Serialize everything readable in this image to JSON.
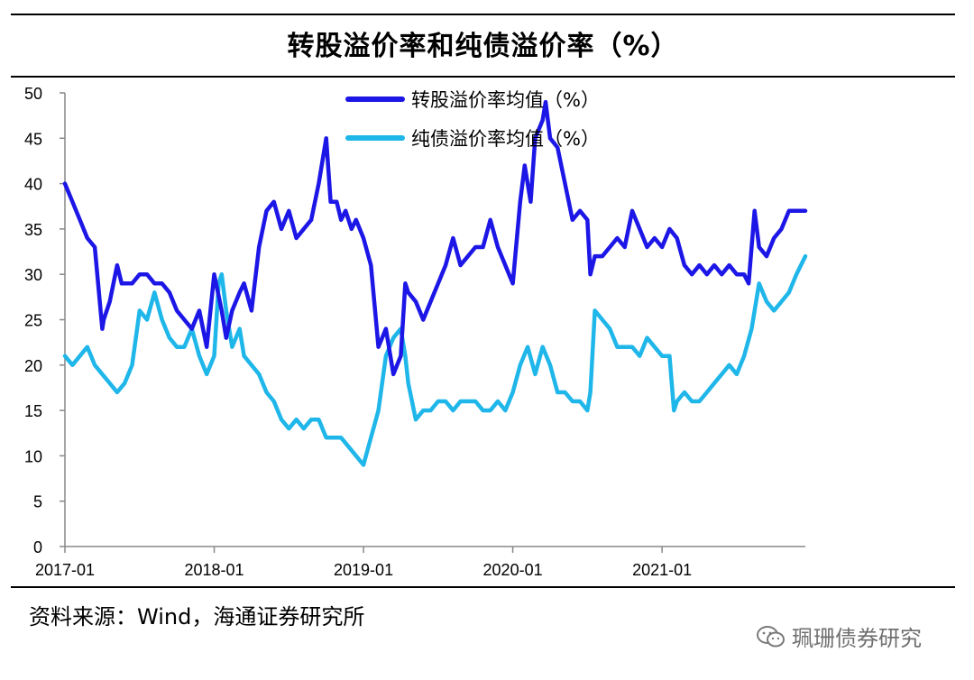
{
  "title": "转股溢价率和纯债溢价率（%）",
  "source": "资料来源：Wind，海通证券研究所",
  "watermark": {
    "icon": "wechat-icon",
    "text": "珮珊债券研究"
  },
  "colors": {
    "series1": "#1c16e6",
    "series2": "#1fb6ea",
    "axis": "#888888"
  },
  "chart_data": {
    "type": "line",
    "title": "转股溢价率和纯债溢价率（%）",
    "xlabel": "",
    "ylabel": "",
    "ylim": [
      0,
      50
    ],
    "yticks": [
      0,
      5,
      10,
      15,
      20,
      25,
      30,
      35,
      40,
      45,
      50
    ],
    "xlim": [
      2017.0,
      2021.96
    ],
    "xticks": [
      {
        "label": "2017-01",
        "value": 2017.0
      },
      {
        "label": "2018-01",
        "value": 2018.0
      },
      {
        "label": "2019-01",
        "value": 2019.0
      },
      {
        "label": "2020-01",
        "value": 2020.0
      },
      {
        "label": "2021-01",
        "value": 2021.0
      }
    ],
    "legend_position": "top-center",
    "grid": false,
    "series": [
      {
        "name": "转股溢价率均值（%）",
        "color": "#1c16e6",
        "x": [
          2017.0,
          2017.05,
          2017.1,
          2017.15,
          2017.2,
          2017.25,
          2017.26,
          2017.3,
          2017.35,
          2017.38,
          2017.45,
          2017.5,
          2017.55,
          2017.6,
          2017.65,
          2017.7,
          2017.75,
          2017.8,
          2017.85,
          2017.9,
          2017.95,
          2018.0,
          2018.05,
          2018.08,
          2018.12,
          2018.17,
          2018.2,
          2018.25,
          2018.3,
          2018.35,
          2018.4,
          2018.45,
          2018.5,
          2018.55,
          2018.6,
          2018.65,
          2018.7,
          2018.75,
          2018.78,
          2018.82,
          2018.85,
          2018.88,
          2018.92,
          2018.95,
          2019.0,
          2019.05,
          2019.1,
          2019.15,
          2019.2,
          2019.25,
          2019.28,
          2019.3,
          2019.35,
          2019.4,
          2019.45,
          2019.5,
          2019.55,
          2019.6,
          2019.65,
          2019.7,
          2019.75,
          2019.8,
          2019.85,
          2019.9,
          2019.95,
          2020.0,
          2020.05,
          2020.08,
          2020.12,
          2020.15,
          2020.2,
          2020.22,
          2020.25,
          2020.3,
          2020.35,
          2020.4,
          2020.45,
          2020.5,
          2020.52,
          2020.55,
          2020.6,
          2020.65,
          2020.7,
          2020.75,
          2020.8,
          2020.85,
          2020.9,
          2020.95,
          2021.0,
          2021.05,
          2021.1,
          2021.15,
          2021.2,
          2021.25,
          2021.3,
          2021.35,
          2021.4,
          2021.45,
          2021.5,
          2021.55,
          2021.58,
          2021.62,
          2021.65,
          2021.7,
          2021.75,
          2021.8,
          2021.85,
          2021.9,
          2021.96
        ],
        "values": [
          40,
          38,
          36,
          34,
          33,
          24,
          25,
          27,
          31,
          29,
          29,
          30,
          30,
          29,
          29,
          28,
          26,
          25,
          24,
          26,
          22,
          30,
          26,
          23,
          26,
          28,
          29,
          26,
          33,
          37,
          38,
          35,
          37,
          34,
          35,
          36,
          40,
          45,
          38,
          38,
          36,
          37,
          35,
          36,
          34,
          31,
          22,
          24,
          19,
          21,
          29,
          28,
          27,
          25,
          27,
          29,
          31,
          34,
          31,
          32,
          33,
          33,
          36,
          33,
          31,
          29,
          38,
          42,
          38,
          45,
          47,
          49,
          45,
          44,
          40,
          36,
          37,
          36,
          30,
          32,
          32,
          33,
          34,
          33,
          37,
          35,
          33,
          34,
          33,
          35,
          34,
          31,
          30,
          31,
          30,
          31,
          30,
          31,
          30,
          30,
          29,
          37,
          33,
          32,
          34,
          35,
          37,
          37,
          37
        ]
      },
      {
        "name": "纯债溢价率均值（%）",
        "color": "#1fb6ea",
        "x": [
          2017.0,
          2017.05,
          2017.1,
          2017.15,
          2017.2,
          2017.25,
          2017.3,
          2017.35,
          2017.4,
          2017.45,
          2017.5,
          2017.55,
          2017.6,
          2017.65,
          2017.7,
          2017.75,
          2017.8,
          2017.85,
          2017.9,
          2017.95,
          2018.0,
          2018.03,
          2018.05,
          2018.08,
          2018.12,
          2018.17,
          2018.2,
          2018.25,
          2018.3,
          2018.35,
          2018.4,
          2018.45,
          2018.5,
          2018.55,
          2018.6,
          2018.65,
          2018.7,
          2018.75,
          2018.8,
          2018.85,
          2018.9,
          2018.95,
          2019.0,
          2019.05,
          2019.1,
          2019.15,
          2019.2,
          2019.25,
          2019.28,
          2019.3,
          2019.35,
          2019.4,
          2019.45,
          2019.5,
          2019.55,
          2019.6,
          2019.65,
          2019.7,
          2019.75,
          2019.8,
          2019.85,
          2019.9,
          2019.95,
          2020.0,
          2020.05,
          2020.1,
          2020.15,
          2020.2,
          2020.25,
          2020.3,
          2020.35,
          2020.4,
          2020.45,
          2020.5,
          2020.52,
          2020.55,
          2020.6,
          2020.65,
          2020.7,
          2020.75,
          2020.8,
          2020.85,
          2020.9,
          2020.95,
          2021.0,
          2021.05,
          2021.08,
          2021.1,
          2021.15,
          2021.2,
          2021.25,
          2021.3,
          2021.35,
          2021.4,
          2021.45,
          2021.5,
          2021.55,
          2021.6,
          2021.65,
          2021.7,
          2021.75,
          2021.8,
          2021.85,
          2021.9,
          2021.96
        ],
        "values": [
          21,
          20,
          21,
          22,
          20,
          19,
          18,
          17,
          18,
          20,
          26,
          25,
          28,
          25,
          23,
          22,
          22,
          24,
          21,
          19,
          21,
          29,
          30,
          26,
          22,
          24,
          21,
          20,
          19,
          17,
          16,
          14,
          13,
          14,
          13,
          14,
          14,
          12,
          12,
          12,
          11,
          10,
          9,
          12,
          15,
          21,
          23,
          24,
          21,
          18,
          14,
          15,
          15,
          16,
          16,
          15,
          16,
          16,
          16,
          15,
          15,
          16,
          15,
          17,
          20,
          22,
          19,
          22,
          20,
          17,
          17,
          16,
          16,
          15,
          17,
          26,
          25,
          24,
          22,
          22,
          22,
          21,
          23,
          22,
          21,
          21,
          15,
          16,
          17,
          16,
          16,
          17,
          18,
          19,
          20,
          19,
          21,
          24,
          29,
          27,
          26,
          27,
          28,
          30,
          32
        ]
      }
    ]
  }
}
